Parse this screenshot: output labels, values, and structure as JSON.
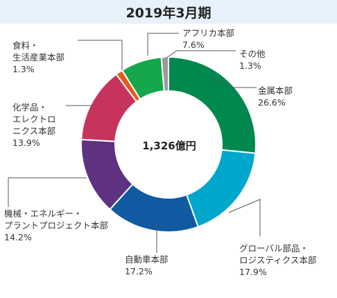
{
  "chart_data": {
    "type": "pie",
    "title": "2019年3月期",
    "center_label": "1,326億円",
    "slices": [
      {
        "name": [
          "金属本部"
        ],
        "value": 26.6,
        "value_label": "26.6%",
        "color": "#00884f"
      },
      {
        "name": [
          "グローバル部品・",
          "ロジスティクス本部"
        ],
        "value": 17.9,
        "value_label": "17.9%",
        "color": "#00a7cd"
      },
      {
        "name": [
          "自動車本部"
        ],
        "value": 17.2,
        "value_label": "17.2%",
        "color": "#0f5aa1"
      },
      {
        "name": [
          "機械・エネルギー・",
          "プラントプロジェクト本部"
        ],
        "value": 14.2,
        "value_label": "14.2%",
        "color": "#5e3181"
      },
      {
        "name": [
          "化学品・",
          "エレクトロ",
          "ニクス本部"
        ],
        "value": 13.9,
        "value_label": "13.9%",
        "color": "#c8335e"
      },
      {
        "name": [
          "食料・",
          "生活産業本部"
        ],
        "value": 1.3,
        "value_label": "1.3%",
        "color": "#e9581d"
      },
      {
        "name": [
          "アフリカ本部"
        ],
        "value": 7.6,
        "value_label": "7.6%",
        "color": "#16a64b"
      },
      {
        "name": [
          "その他"
        ],
        "value": 1.3,
        "value_label": "1.3%",
        "color": "#9a9a9a"
      }
    ]
  }
}
